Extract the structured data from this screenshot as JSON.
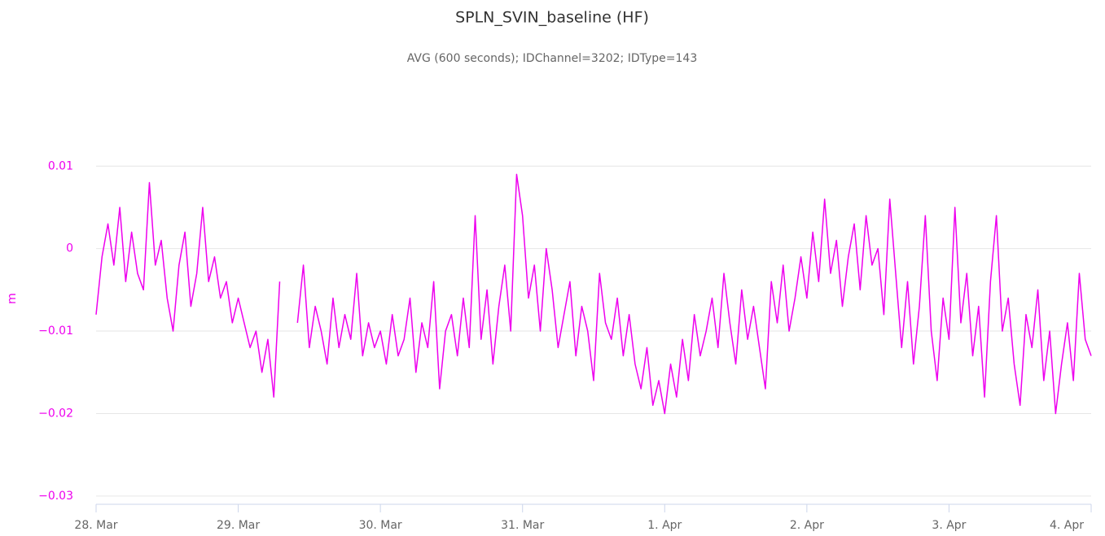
{
  "chart_data": {
    "type": "line",
    "title": "SPLN_SVIN_baseline (HF)",
    "subtitle": "AVG (600 seconds); IDChannel=3202; IDType=143",
    "y_label": "m",
    "color": "#ee00ee",
    "grid": true,
    "xlim": [
      0,
      168
    ],
    "xticks": [
      {
        "value": 0,
        "label": "28. Mar"
      },
      {
        "value": 24,
        "label": "29. Mar"
      },
      {
        "value": 48,
        "label": "30. Mar"
      },
      {
        "value": 72,
        "label": "31. Mar"
      },
      {
        "value": 96,
        "label": "1. Apr"
      },
      {
        "value": 120,
        "label": "2. Apr"
      },
      {
        "value": 144,
        "label": "3. Apr"
      },
      {
        "value": 168,
        "label": "4. Apr"
      }
    ],
    "ylim": [
      -0.031,
      0.019
    ],
    "yticks": [
      {
        "value": -0.03,
        "label": "−0.03"
      },
      {
        "value": -0.02,
        "label": "−0.02"
      },
      {
        "value": -0.01,
        "label": "−0.01"
      },
      0,
      0.01
    ],
    "x": [
      0,
      1,
      2,
      3,
      4,
      5,
      6,
      7,
      8,
      9,
      10,
      11,
      12,
      13,
      14,
      15,
      16,
      17,
      18,
      19,
      20,
      21,
      22,
      23,
      24,
      25,
      26,
      27,
      28,
      29,
      30,
      31,
      32,
      33,
      34,
      35,
      36,
      37,
      38,
      39,
      40,
      41,
      42,
      43,
      44,
      45,
      46,
      47,
      48,
      49,
      50,
      51,
      52,
      53,
      54,
      55,
      56,
      57,
      58,
      59,
      60,
      61,
      62,
      63,
      64,
      65,
      66,
      67,
      68,
      69,
      70,
      71,
      72,
      73,
      74,
      75,
      76,
      77,
      78,
      79,
      80,
      81,
      82,
      83,
      84,
      85,
      86,
      87,
      88,
      89,
      90,
      91,
      92,
      93,
      94,
      95,
      96,
      97,
      98,
      99,
      100,
      101,
      102,
      103,
      104,
      105,
      106,
      107,
      108,
      109,
      110,
      111,
      112,
      113,
      114,
      115,
      116,
      117,
      118,
      119,
      120,
      121,
      122,
      123,
      124,
      125,
      126,
      127,
      128,
      129,
      130,
      131,
      132,
      133,
      134,
      135,
      136,
      137,
      138,
      139,
      140,
      141,
      142,
      143,
      144,
      145,
      146,
      147,
      148,
      149,
      150,
      151,
      152,
      153,
      154,
      155,
      156,
      157,
      158,
      159,
      160,
      161,
      162,
      163,
      164,
      165,
      166,
      167,
      168
    ],
    "values": [
      -0.008,
      -0.001,
      0.003,
      -0.002,
      0.005,
      -0.004,
      0.002,
      -0.003,
      -0.005,
      0.008,
      -0.002,
      0.001,
      -0.006,
      -0.01,
      -0.002,
      0.002,
      -0.007,
      -0.003,
      0.005,
      -0.004,
      -0.001,
      -0.006,
      -0.004,
      -0.009,
      -0.006,
      -0.009,
      -0.012,
      -0.01,
      -0.015,
      -0.011,
      -0.018,
      -0.004,
      null,
      null,
      -0.009,
      -0.002,
      -0.012,
      -0.007,
      -0.01,
      -0.014,
      -0.006,
      -0.012,
      -0.008,
      -0.011,
      -0.003,
      -0.013,
      -0.009,
      -0.012,
      -0.01,
      -0.014,
      -0.008,
      -0.013,
      -0.011,
      -0.006,
      -0.015,
      -0.009,
      -0.012,
      -0.004,
      -0.017,
      -0.01,
      -0.008,
      -0.013,
      -0.006,
      -0.012,
      0.004,
      -0.011,
      -0.005,
      -0.014,
      -0.007,
      -0.002,
      -0.01,
      0.009,
      0.004,
      -0.006,
      -0.002,
      -0.01,
      0,
      -0.005,
      -0.012,
      -0.008,
      -0.004,
      -0.013,
      -0.007,
      -0.01,
      -0.016,
      -0.003,
      -0.009,
      -0.011,
      -0.006,
      -0.013,
      -0.008,
      -0.014,
      -0.017,
      -0.012,
      -0.019,
      -0.016,
      -0.02,
      -0.014,
      -0.018,
      -0.011,
      -0.016,
      -0.008,
      -0.013,
      -0.01,
      -0.006,
      -0.012,
      -0.003,
      -0.009,
      -0.014,
      -0.005,
      -0.011,
      -0.007,
      -0.012,
      -0.017,
      -0.004,
      -0.009,
      -0.002,
      -0.01,
      -0.006,
      -0.001,
      -0.006,
      0.002,
      -0.004,
      0.006,
      -0.003,
      0.001,
      -0.007,
      -0.001,
      0.003,
      -0.005,
      0.004,
      -0.002,
      0,
      -0.008,
      0.006,
      -0.003,
      -0.012,
      -0.004,
      -0.014,
      -0.007,
      0.004,
      -0.01,
      -0.016,
      -0.006,
      -0.011,
      0.005,
      -0.009,
      -0.003,
      -0.013,
      -0.007,
      -0.018,
      -0.004,
      0.004,
      -0.01,
      -0.006,
      -0.014,
      -0.019,
      -0.008,
      -0.012,
      -0.005,
      -0.016,
      -0.01,
      -0.02,
      -0.014,
      -0.009,
      -0.016,
      -0.003,
      -0.011,
      -0.013
    ]
  }
}
